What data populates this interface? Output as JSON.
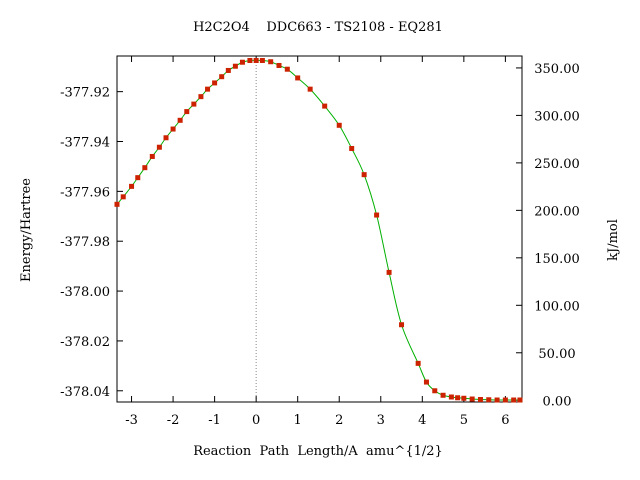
{
  "chart_data": {
    "type": "line",
    "title": "H2C2O4    DDC663 - TS2108 - EQ281",
    "xlabel": "Reaction  Path  Length/A  amu^{1/2}",
    "ylabel": "Energy/Hartree",
    "y2label": "kJ/mol",
    "xlim": [
      -3.35,
      6.4
    ],
    "ylim": [
      -378.0445,
      -377.9057
    ],
    "y2lim": [
      -1.84,
      362.56
    ],
    "x_ticks": [
      -3,
      -2,
      -1,
      0,
      1,
      2,
      3,
      4,
      5,
      6
    ],
    "x_tick_labels": [
      "-3",
      "-2",
      "-1",
      "0",
      "1",
      "2",
      "3",
      "4",
      "5",
      "6"
    ],
    "y_ticks": [
      -377.92,
      -377.94,
      -377.96,
      -377.98,
      -378.0,
      -378.02,
      -378.04
    ],
    "y_tick_labels": [
      "-377.92",
      "-377.94",
      "-377.96",
      "-377.98",
      "-378.00",
      "-378.02",
      "-378.04"
    ],
    "y2_ticks": [
      350,
      300,
      250,
      200,
      150,
      100,
      50,
      0
    ],
    "y2_tick_labels": [
      "350.00",
      "300.00",
      "250.00",
      "200.00",
      "150.00",
      "100.00",
      "50.00",
      "0.00"
    ],
    "ts_marker_x": 0,
    "grid": false,
    "line_color": "#00b000",
    "marker_color": "#cc2200",
    "ts_line_color": "#888888",
    "series": [
      {
        "x": [
          -3.35,
          -3.2,
          -3.0,
          -2.85,
          -2.68,
          -2.5,
          -2.33,
          -2.17,
          -2.0,
          -1.83,
          -1.67,
          -1.5,
          -1.33,
          -1.17,
          -1.0,
          -0.83,
          -0.67,
          -0.5,
          -0.33,
          -0.15,
          0.0,
          0.15,
          0.35,
          0.55,
          0.75,
          1.0,
          1.3,
          1.65,
          2.0,
          2.3,
          2.6,
          2.9,
          3.2,
          3.5,
          3.9,
          4.1,
          4.3,
          4.5,
          4.7,
          4.85,
          5.0,
          5.2,
          5.4,
          5.6,
          5.8,
          6.0,
          6.2,
          6.35
        ],
        "y": [
          -377.9652,
          -377.9622,
          -377.958,
          -377.9545,
          -377.9505,
          -377.946,
          -377.9423,
          -377.9385,
          -377.935,
          -377.9315,
          -377.928,
          -377.925,
          -377.922,
          -377.919,
          -377.9165,
          -377.914,
          -377.9115,
          -377.9098,
          -377.9082,
          -377.9075,
          -377.9075,
          -377.9075,
          -377.908,
          -377.9095,
          -377.911,
          -377.9145,
          -377.919,
          -377.9258,
          -377.9335,
          -377.9428,
          -377.9533,
          -377.9695,
          -377.9925,
          -378.0135,
          -378.029,
          -378.0365,
          -378.04,
          -378.0418,
          -378.0425,
          -378.0428,
          -378.043,
          -378.0433,
          -378.0435,
          -378.0436,
          -378.0437,
          -378.0437,
          -378.0437,
          -378.0437
        ]
      }
    ]
  }
}
